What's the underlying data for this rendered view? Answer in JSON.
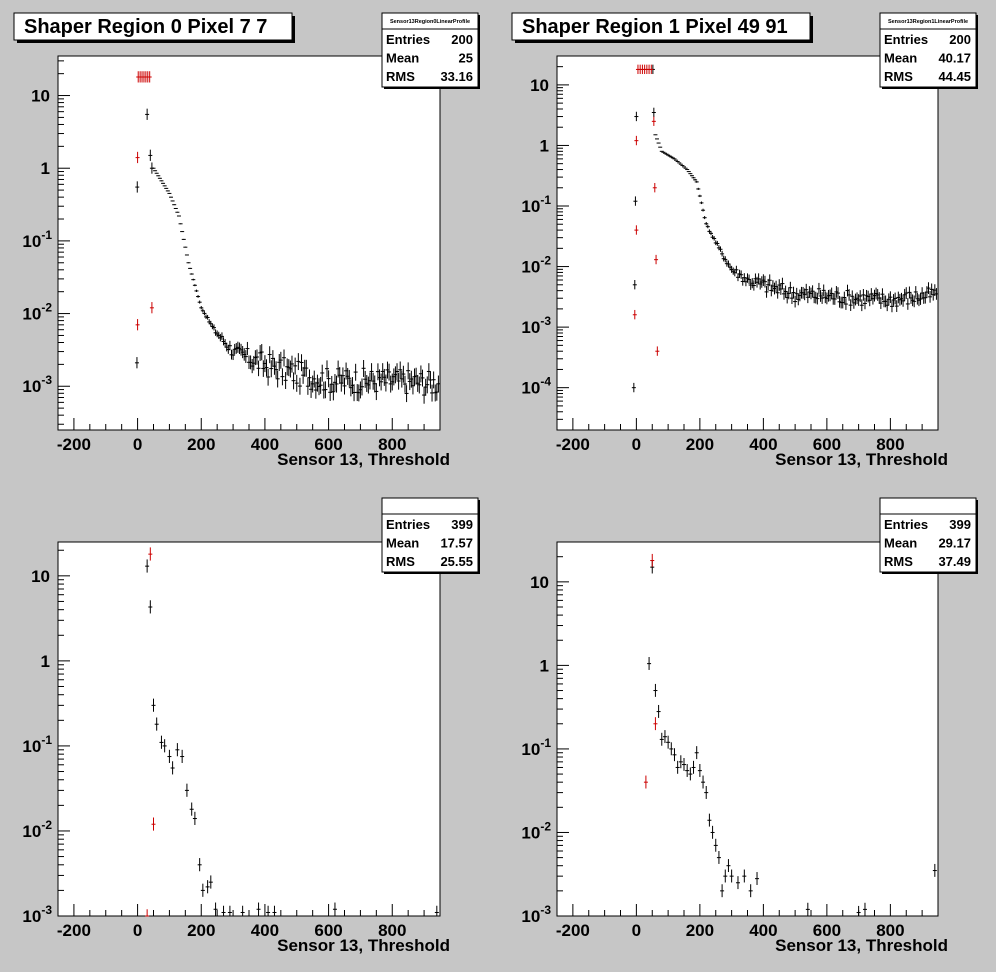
{
  "chart_data": [
    {
      "type": "scatter",
      "title": "Shaper Region 0 Pixel 7 7",
      "stats_name": "Sensor13Region0LinearProfile",
      "stats": [
        {
          "label": "Entries",
          "value": "200"
        },
        {
          "label": "Mean",
          "value": "25"
        },
        {
          "label": "RMS",
          "value": "33.16"
        }
      ],
      "xlabel": "Sensor 13, Threshold",
      "xlim": [
        -250,
        950
      ],
      "ylim": [
        0.00025,
        35
      ],
      "yscale": "log",
      "xticks": [
        -200,
        0,
        200,
        400,
        600,
        800
      ],
      "yticks": [
        {
          "v": 0.001,
          "m": "10",
          "e": "-3"
        },
        {
          "v": 0.01,
          "m": "10",
          "e": "-2"
        },
        {
          "v": 0.1,
          "m": "10",
          "e": "-1"
        },
        {
          "v": 1,
          "m": "1",
          "e": ""
        },
        {
          "v": 10,
          "m": "10",
          "e": ""
        }
      ],
      "series": [
        {
          "color": "#000000",
          "points": [
            [
              -2,
              0.0021
            ],
            [
              -1,
              0.55
            ],
            [
              30,
              5.5
            ],
            [
              40,
              1.5
            ],
            [
              45,
              1.0
            ]
          ],
          "curve": [
            [
              50,
              1.0
            ],
            [
              100,
              0.45
            ],
            [
              130,
              0.22
            ],
            [
              160,
              0.05
            ],
            [
              200,
              0.012
            ],
            [
              240,
              0.006
            ],
            [
              300,
              0.003
            ],
            [
              400,
              0.002
            ],
            [
              500,
              0.0015
            ],
            [
              600,
              0.0012
            ],
            [
              700,
              0.0012
            ],
            [
              800,
              0.0012
            ],
            [
              945,
              0.0011
            ]
          ],
          "curve_step": 5,
          "curve_scatter": 0.35,
          "curve_err": 0.3
        },
        {
          "color": "#cc0000",
          "points": [
            [
              0,
              0.007
            ],
            [
              0,
              1.4
            ],
            [
              45,
              0.012
            ],
            [
              2,
              18
            ],
            [
              8,
              18
            ],
            [
              14,
              18
            ],
            [
              20,
              18
            ],
            [
              26,
              18
            ],
            [
              32,
              18
            ],
            [
              38,
              18
            ]
          ]
        }
      ]
    },
    {
      "type": "scatter",
      "title": "Shaper Region 1 Pixel 49 91",
      "stats_name": "Sensor13Region1LinearProfile",
      "stats": [
        {
          "label": "Entries",
          "value": "200"
        },
        {
          "label": "Mean",
          "value": "40.17"
        },
        {
          "label": "RMS",
          "value": "44.45"
        }
      ],
      "xlabel": "Sensor 13, Threshold",
      "xlim": [
        -250,
        950
      ],
      "ylim": [
        2e-05,
        30
      ],
      "yscale": "log",
      "xticks": [
        -200,
        0,
        200,
        400,
        600,
        800
      ],
      "yticks": [
        {
          "v": 0.0001,
          "m": "10",
          "e": "-4"
        },
        {
          "v": 0.001,
          "m": "10",
          "e": "-3"
        },
        {
          "v": 0.01,
          "m": "10",
          "e": "-2"
        },
        {
          "v": 0.1,
          "m": "10",
          "e": "-1"
        },
        {
          "v": 1,
          "m": "1",
          "e": ""
        },
        {
          "v": 10,
          "m": "10",
          "e": ""
        }
      ],
      "series": [
        {
          "color": "#000000",
          "points": [
            [
              -8,
              0.0001
            ],
            [
              -5,
              0.005
            ],
            [
              -3,
              0.12
            ],
            [
              0,
              3.0
            ],
            [
              52,
              18
            ],
            [
              55,
              3.5
            ]
          ],
          "curve": [
            [
              60,
              1.5
            ],
            [
              80,
              0.8
            ],
            [
              120,
              0.6
            ],
            [
              160,
              0.4
            ],
            [
              190,
              0.25
            ],
            [
              220,
              0.05
            ],
            [
              260,
              0.02
            ],
            [
              300,
              0.009
            ],
            [
              350,
              0.006
            ],
            [
              400,
              0.005
            ],
            [
              500,
              0.0035
            ],
            [
              600,
              0.0033
            ],
            [
              700,
              0.003
            ],
            [
              800,
              0.0028
            ],
            [
              945,
              0.0035
            ]
          ],
          "curve_step": 5,
          "curve_scatter": 0.25,
          "curve_err": 0.25
        },
        {
          "color": "#cc0000",
          "points": [
            [
              -5,
              0.0016
            ],
            [
              0,
              0.04
            ],
            [
              0,
              1.2
            ],
            [
              55,
              2.5
            ],
            [
              58,
              0.2
            ],
            [
              62,
              0.013
            ],
            [
              66,
              0.0004
            ],
            [
              5,
              18
            ],
            [
              12,
              18
            ],
            [
              19,
              18
            ],
            [
              26,
              18
            ],
            [
              33,
              18
            ],
            [
              40,
              18
            ],
            [
              47,
              18
            ]
          ]
        }
      ]
    },
    {
      "type": "scatter",
      "title": "",
      "stats_name": "",
      "stats": [
        {
          "label": "Entries",
          "value": "399"
        },
        {
          "label": "Mean",
          "value": "17.57"
        },
        {
          "label": "RMS",
          "value": "25.55"
        }
      ],
      "xlabel": "Sensor 13, Threshold",
      "xlim": [
        -250,
        950
      ],
      "ylim": [
        0.001,
        25
      ],
      "yscale": "log",
      "xticks": [
        -200,
        0,
        200,
        400,
        600,
        800
      ],
      "yticks": [
        {
          "v": 0.001,
          "m": "10",
          "e": "-3"
        },
        {
          "v": 0.01,
          "m": "10",
          "e": "-2"
        },
        {
          "v": 0.1,
          "m": "10",
          "e": "-1"
        },
        {
          "v": 1,
          "m": "1",
          "e": ""
        },
        {
          "v": 10,
          "m": "10",
          "e": ""
        }
      ],
      "series": [
        {
          "color": "#000000",
          "points": [
            [
              30,
              13
            ],
            [
              40,
              4.3
            ],
            [
              50,
              0.3
            ],
            [
              60,
              0.18
            ],
            [
              75,
              0.11
            ],
            [
              85,
              0.1
            ],
            [
              100,
              0.075
            ],
            [
              110,
              0.055
            ],
            [
              125,
              0.09
            ],
            [
              140,
              0.075
            ],
            [
              155,
              0.03
            ],
            [
              170,
              0.018
            ],
            [
              180,
              0.014
            ],
            [
              195,
              0.004
            ],
            [
              205,
              0.002
            ],
            [
              220,
              0.0022
            ],
            [
              230,
              0.0025
            ],
            [
              245,
              0.0012
            ],
            [
              270,
              0.0011
            ],
            [
              290,
              0.0011
            ],
            [
              330,
              0.0011
            ],
            [
              380,
              0.0012
            ],
            [
              410,
              0.0011
            ],
            [
              430,
              0.0011
            ],
            [
              620,
              0.0012
            ],
            [
              940,
              0.0011
            ]
          ]
        },
        {
          "color": "#cc0000",
          "points": [
            [
              40,
              18
            ],
            [
              50,
              0.012
            ],
            [
              30,
              0.001
            ]
          ]
        }
      ]
    },
    {
      "type": "scatter",
      "title": "",
      "stats_name": "",
      "stats": [
        {
          "label": "Entries",
          "value": "399"
        },
        {
          "label": "Mean",
          "value": "29.17"
        },
        {
          "label": "RMS",
          "value": "37.49"
        }
      ],
      "xlabel": "Sensor 13, Threshold",
      "xlim": [
        -250,
        950
      ],
      "ylim": [
        0.001,
        30
      ],
      "yscale": "log",
      "xticks": [
        -200,
        0,
        200,
        400,
        600,
        800
      ],
      "yticks": [
        {
          "v": 0.001,
          "m": "10",
          "e": "-3"
        },
        {
          "v": 0.01,
          "m": "10",
          "e": "-2"
        },
        {
          "v": 0.1,
          "m": "10",
          "e": "-1"
        },
        {
          "v": 1,
          "m": "1",
          "e": ""
        },
        {
          "v": 10,
          "m": "10",
          "e": ""
        }
      ],
      "series": [
        {
          "color": "#000000",
          "points": [
            [
              40,
              1.05
            ],
            [
              50,
              15
            ],
            [
              60,
              0.5
            ],
            [
              70,
              0.28
            ],
            [
              80,
              0.13
            ],
            [
              90,
              0.14
            ],
            [
              100,
              0.12
            ],
            [
              110,
              0.1
            ],
            [
              120,
              0.085
            ],
            [
              130,
              0.06
            ],
            [
              140,
              0.07
            ],
            [
              150,
              0.065
            ],
            [
              160,
              0.055
            ],
            [
              170,
              0.05
            ],
            [
              180,
              0.06
            ],
            [
              190,
              0.09
            ],
            [
              200,
              0.055
            ],
            [
              210,
              0.04
            ],
            [
              220,
              0.03
            ],
            [
              230,
              0.014
            ],
            [
              240,
              0.01
            ],
            [
              250,
              0.007
            ],
            [
              260,
              0.005
            ],
            [
              270,
              0.002
            ],
            [
              280,
              0.003
            ],
            [
              290,
              0.004
            ],
            [
              300,
              0.003
            ],
            [
              320,
              0.0025
            ],
            [
              340,
              0.003
            ],
            [
              360,
              0.002
            ],
            [
              380,
              0.0028
            ],
            [
              540,
              0.0012
            ],
            [
              700,
              0.0011
            ],
            [
              720,
              0.0012
            ],
            [
              940,
              0.0035
            ]
          ]
        },
        {
          "color": "#cc0000",
          "points": [
            [
              30,
              0.04
            ],
            [
              50,
              18
            ],
            [
              60,
              0.2
            ]
          ]
        }
      ]
    }
  ]
}
